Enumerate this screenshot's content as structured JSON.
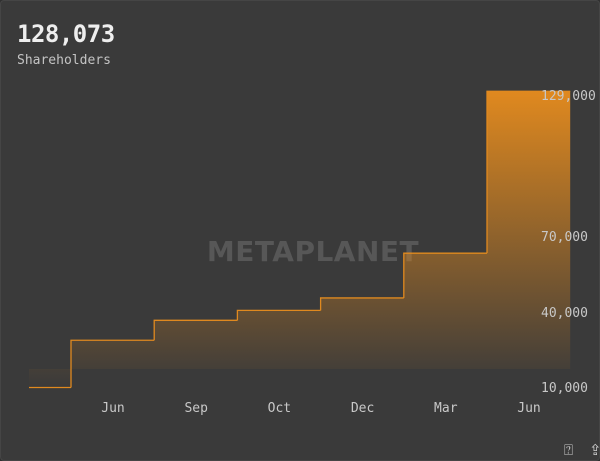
{
  "header": {
    "value": "128,073",
    "label": "Shareholders"
  },
  "watermark": "METAPLANET",
  "colors": {
    "accent": "#e0891f",
    "background": "#3a3a3a",
    "text": "#c8c8c8"
  },
  "footer": {
    "help_icon": "question-circle-icon",
    "share_icon": "share-icon"
  },
  "chart_data": {
    "type": "area",
    "title": "",
    "xlabel": "",
    "ylabel": "",
    "x_tick_labels": [
      "Jun",
      "Sep",
      "Oct",
      "Dec",
      "Mar",
      "Jun"
    ],
    "y_tick_labels": [
      "129,000",
      "70,000",
      "40,000",
      "10,000"
    ],
    "y_ticks": [
      129000,
      70000,
      40000,
      10000
    ],
    "ylim": [
      10000,
      129000
    ],
    "grid": false,
    "step": true,
    "series": [
      {
        "values": [
          9000,
          28000,
          36000,
          40000,
          45000,
          63000,
          128073
        ]
      }
    ]
  }
}
